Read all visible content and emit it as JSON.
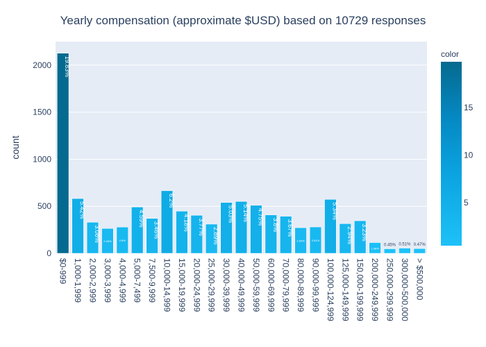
{
  "chart_data": {
    "type": "bar",
    "title": "Yearly compensation (approximate $USD) based on 10729 responses",
    "xlabel": "",
    "ylabel": "count",
    "ylim": [
      0,
      2250
    ],
    "yticks": [
      0,
      500,
      1000,
      1500,
      2000
    ],
    "grid": true,
    "categories": [
      "$0-999",
      "1,000-1,999",
      "2,000-2,999",
      "3,000-3,999",
      "4,000-4,999",
      "5,000-7,499",
      "7,500-9,999",
      "10,000-14,999",
      "15,000-19,999",
      "20,000-24,999",
      "25,000-29,999",
      "30,000-39,999",
      "40,000-49,999",
      "50,000-59,999",
      "60,000-69,999",
      "70,000-79,999",
      "80,000-89,999",
      "90,000-99,999",
      "100,000-124,999",
      "125,000-149,999",
      "150,000-199,999",
      "200,000-249,999",
      "250,000-299,999",
      "300,000-500,000",
      "> $500,000"
    ],
    "values": [
      2127,
      582,
      330,
      264,
      279,
      492,
      371,
      665,
      448,
      404,
      310,
      540,
      551,
      510,
      408,
      394,
      272,
      280,
      573,
      315,
      346,
      114,
      48,
      55,
      50
    ],
    "data_labels": [
      "19.83%",
      "5.42%",
      "3.08%",
      "2.46%",
      "2.6%",
      "4.59%",
      "3.46%",
      "6.2%",
      "4.18%",
      "3.77%",
      "2.89%",
      "5.03%",
      "5.14%",
      "4.75%",
      "3.8%",
      "3.67%",
      "2.54%",
      "2.61%",
      "5.34%",
      "2.94%",
      "3.23%",
      "1.06%",
      "0.45%",
      "0.51%",
      "0.47%"
    ],
    "color_values": [
      19.83,
      5.42,
      3.08,
      2.46,
      2.6,
      4.59,
      3.46,
      6.2,
      4.18,
      3.77,
      2.89,
      5.03,
      5.14,
      4.75,
      3.8,
      3.67,
      2.54,
      2.61,
      5.34,
      2.94,
      3.23,
      1.06,
      0.45,
      0.51,
      0.47
    ],
    "colorbar": {
      "title": "color",
      "ticks": [
        5,
        10,
        15
      ],
      "range": [
        0.45,
        19.83
      ],
      "colors": [
        "#1ec1f8",
        "#0aa3df",
        "#0588c2",
        "#056a8f"
      ]
    },
    "plot_background": "#e5ecf6",
    "text_color": "#2a3f5f"
  }
}
